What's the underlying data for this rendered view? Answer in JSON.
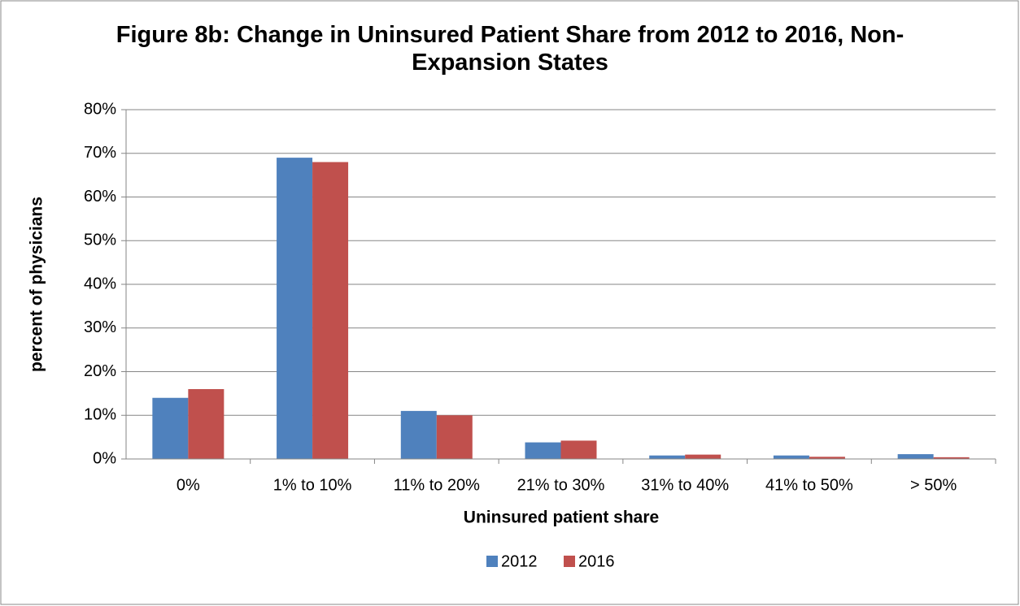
{
  "chart_data": {
    "type": "bar",
    "title": "Figure 8b: Change in Uninsured Patient Share from 2012 to 2016, Non-Expansion States",
    "x_label": "Uninsured patient share",
    "y_label": "percent of physicians",
    "categories": [
      "0%",
      "1% to 10%",
      "11% to 20%",
      "21% to 30%",
      "31% to 40%",
      "41% to 50%",
      "> 50%"
    ],
    "series": [
      {
        "name": "2012",
        "color": "#4f81bd",
        "values": [
          14,
          69,
          11,
          3.8,
          0.8,
          0.8,
          1.1
        ]
      },
      {
        "name": "2016",
        "color": "#c0504d",
        "values": [
          16,
          68,
          10,
          4.2,
          1.0,
          0.5,
          0.4
        ]
      }
    ],
    "ylim": [
      0,
      80
    ],
    "yticks": [
      {
        "value": 0,
        "label": "0%"
      },
      {
        "value": 10,
        "label": "10%"
      },
      {
        "value": 20,
        "label": "20%"
      },
      {
        "value": 30,
        "label": "30%"
      },
      {
        "value": 40,
        "label": "40%"
      },
      {
        "value": 50,
        "label": "50%"
      },
      {
        "value": 60,
        "label": "60%"
      },
      {
        "value": 70,
        "label": "70%"
      },
      {
        "value": 80,
        "label": "80%"
      }
    ],
    "grid": true,
    "legend": "bottom"
  }
}
